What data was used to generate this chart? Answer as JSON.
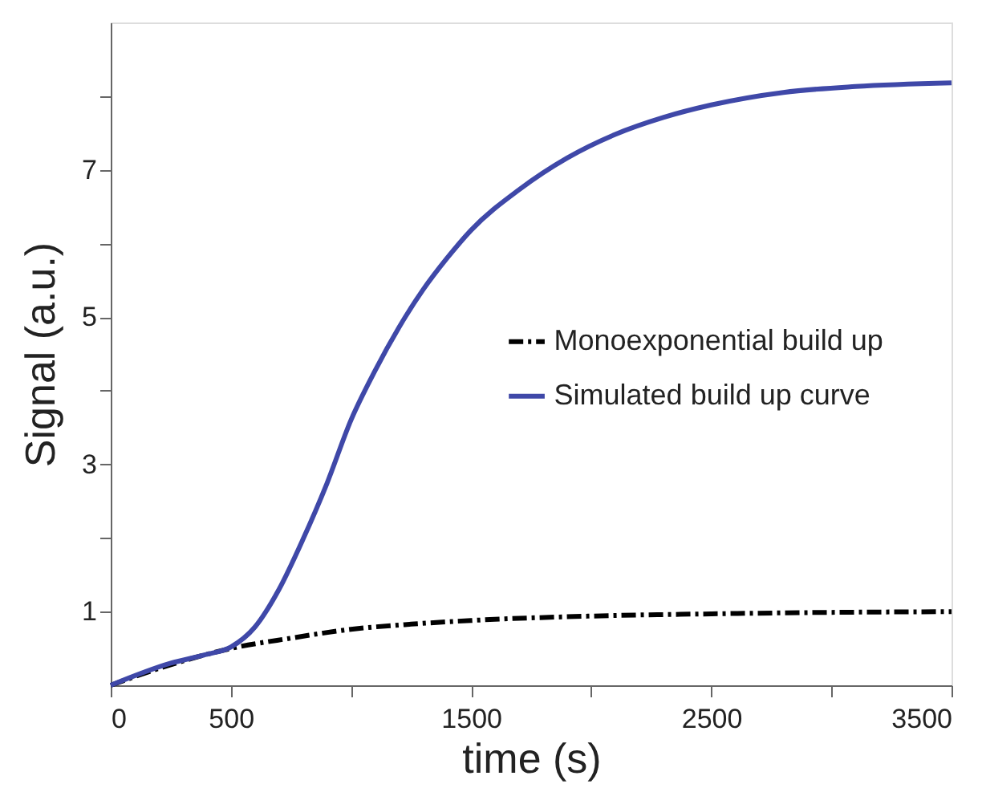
{
  "chart_data": {
    "type": "line",
    "xlabel": "time (s)",
    "ylabel": "Signal (a.u.)",
    "xlim": [
      0,
      3500
    ],
    "ylim": [
      0,
      9
    ],
    "xticks": [
      0,
      500,
      {
        "value": 1000,
        "label": null
      },
      1500,
      {
        "value": 2000,
        "label": null
      },
      2500,
      {
        "value": 3000,
        "label": null
      },
      3500
    ],
    "yticks": [
      1,
      {
        "value": 2,
        "label": null
      },
      3,
      {
        "value": 4,
        "label": null
      },
      5,
      {
        "value": 6,
        "label": null
      },
      7,
      {
        "value": 8,
        "label": null
      }
    ],
    "grid": false,
    "legend": "right",
    "marker": "none",
    "series": [
      {
        "name": "Monoexponential build up",
        "color": "#000000",
        "line_style": "dashed",
        "x": [
          0,
          250,
          400,
          500,
          750,
          1000,
          1250,
          1500,
          2000,
          2500,
          3000,
          3500
        ],
        "values": [
          0,
          0.28,
          0.42,
          0.5,
          0.64,
          0.76,
          0.83,
          0.88,
          0.94,
          0.97,
          0.99,
          1.0
        ]
      },
      {
        "name": "Simulated build up curve",
        "color": "#3f48a8",
        "line_style": "solid",
        "x": [
          0,
          250,
          400,
          500,
          600,
          700,
          800,
          900,
          1000,
          1100,
          1200,
          1300,
          1400,
          1500,
          1700,
          1900,
          2100,
          2300,
          2500,
          2800,
          3100,
          3500
        ],
        "values": [
          0,
          0.3,
          0.42,
          0.52,
          0.79,
          1.3,
          1.98,
          2.74,
          3.6,
          4.27,
          4.86,
          5.37,
          5.8,
          6.18,
          6.73,
          7.16,
          7.48,
          7.71,
          7.88,
          8.05,
          8.13,
          8.18
        ]
      }
    ]
  }
}
